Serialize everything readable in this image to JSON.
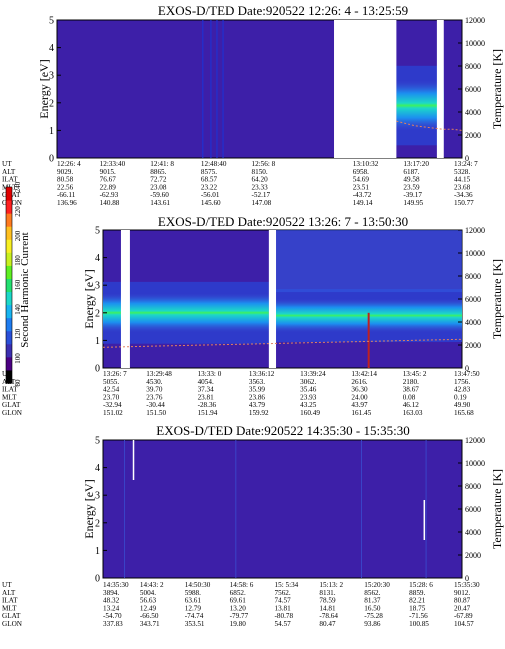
{
  "colors": {
    "background": "#3d1fa8",
    "gap": "#ffffff",
    "cbar": [
      "#000000",
      "#4b0082",
      "#3b2fb0",
      "#2a4fd8",
      "#1e7cf0",
      "#18b4f0",
      "#1cd8c8",
      "#22e070",
      "#5ef022",
      "#c8f020",
      "#f8f022",
      "#ffc020",
      "#ff7a20",
      "#ff2020",
      "#e00000"
    ]
  },
  "colorbar": {
    "label": "Second Harmonic Current",
    "ticks": [
      "80",
      "100",
      "120",
      "140",
      "160",
      "180",
      "200",
      "220",
      "240"
    ]
  },
  "chart_data": [
    {
      "type": "heatmap",
      "title": "EXOS-D/TED   Date:920522  12:26: 4 - 13:25:59",
      "ylabel": "Energy [eV]",
      "y2label": "Temperature [K]",
      "ylim": [
        0,
        5
      ],
      "y2lim": [
        0,
        12000
      ],
      "yticks": [
        "0",
        "1",
        "2",
        "3",
        "4",
        "5"
      ],
      "y2ticks": [
        "0",
        "2000",
        "4000",
        "6000",
        "8000",
        "10000",
        "12000"
      ],
      "gaps": [
        [
          0.684,
          0.838
        ],
        [
          0.938,
          0.955
        ]
      ],
      "band": [
        {
          "from": 0.838,
          "to": 0.955,
          "center": 1.9,
          "width": 0.9,
          "level": 1
        }
      ],
      "temperature": {
        "from": 0.838,
        "to": 1.0,
        "values_K": [
          3200,
          3000,
          2800,
          2700,
          2600,
          2500,
          2500,
          2400
        ]
      },
      "ephemeris": {
        "labels": [
          "UT",
          "ALT",
          "ILAT",
          "MLT",
          "GLAT",
          "GLON"
        ],
        "columns": [
          [
            "12:26: 4",
            "9029.",
            "80.58",
            "22.56",
            "-66.11",
            "136.96"
          ],
          [
            "12:33:40",
            "9015.",
            "76.67",
            "22.89",
            "-62.93",
            "140.88"
          ],
          [
            "12:41: 8",
            "8865.",
            "72.72",
            "23.08",
            "-59.60",
            "143.61"
          ],
          [
            "12:48:40",
            "8575.",
            "68.57",
            "23.22",
            "-56.01",
            "145.60"
          ],
          [
            "12:56: 8",
            "8150.",
            "64.20",
            "23.33",
            "-52.17",
            "147.08"
          ],
          [
            "",
            "",
            "",
            "",
            "",
            ""
          ],
          [
            "13:10:32",
            "6958.",
            "54.69",
            "23.51",
            "-43.72",
            "149.14"
          ],
          [
            "13:17:20",
            "6187.",
            "49.58",
            "23.59",
            "-39.17",
            "149.95"
          ],
          [
            "13:24: 7",
            "5328.",
            "44.15",
            "23.68",
            "-34.36",
            "150.77"
          ]
        ]
      }
    },
    {
      "type": "heatmap",
      "title": "EXOS-D/TED   Date:920522  13:26: 7 - 13:50:30",
      "ylabel": "Energy [eV]",
      "y2label": "Temperature [K]",
      "ylim": [
        0,
        5
      ],
      "y2lim": [
        0,
        12000
      ],
      "yticks": [
        "0",
        "1",
        "2",
        "3",
        "4",
        "5"
      ],
      "y2ticks": [
        "0",
        "2000",
        "4000",
        "6000",
        "8000",
        "10000",
        "12000"
      ],
      "gaps": [
        [
          0.05,
          0.075
        ],
        [
          0.462,
          0.482
        ]
      ],
      "band": [
        {
          "from": 0.0,
          "to": 0.462,
          "center": 2.0,
          "width": 0.7,
          "level": 1
        },
        {
          "from": 0.482,
          "to": 1.0,
          "center": 1.9,
          "width": 0.6,
          "level": 0.8
        }
      ],
      "temperature": {
        "from": 0.0,
        "to": 1.0,
        "values_K": [
          1800,
          1900,
          2000,
          2100,
          2200,
          2300,
          2400,
          2500
        ]
      },
      "ephemeris": {
        "labels": [
          "UT",
          "ALT",
          "ILAT",
          "MLT",
          "GLAT",
          "GLON"
        ],
        "columns": [
          [
            "13:26: 7",
            "5055.",
            "42.54",
            "23.70",
            "-32.94",
            "151.02"
          ],
          [
            "13:29:48",
            "4530.",
            "39.70",
            "23.76",
            "-30.44",
            "151.50"
          ],
          [
            "13:33: 0",
            "4054.",
            "37.34",
            "23.81",
            "-28.36",
            "151.94"
          ],
          [
            "13:36:12",
            "3563.",
            "35.99",
            "23.86",
            "43.79",
            "159.92"
          ],
          [
            "13:39:24",
            "3062.",
            "35.46",
            "23.93",
            "43.25",
            "160.49"
          ],
          [
            "13:42:14",
            "2616.",
            "36.30",
            "24.00",
            "43.97",
            "161.45"
          ],
          [
            "13:45: 2",
            "2180.",
            "38.67",
            "0.08",
            "46.12",
            "163.03"
          ],
          [
            "13:47:50",
            "1756.",
            "42.83",
            "0.19",
            "49.90",
            "165.68"
          ]
        ]
      }
    },
    {
      "type": "heatmap",
      "title": "EXOS-D/TED   Date:920522  14:35:30 - 15:35:30",
      "ylabel": "Energy [eV]",
      "y2label": "Temperature [K]",
      "ylim": [
        0,
        5
      ],
      "y2lim": [
        0,
        12000
      ],
      "yticks": [
        "0",
        "1",
        "2",
        "3",
        "4",
        "5"
      ],
      "y2ticks": [
        "0",
        "2000",
        "4000",
        "6000",
        "8000",
        "10000",
        "12000"
      ],
      "gaps": [],
      "band": [],
      "temperature": null,
      "ephemeris": {
        "labels": [
          "UT",
          "ALT",
          "ILAT",
          "MLT",
          "GLAT",
          "GLON"
        ],
        "columns": [
          [
            "14:35:30",
            "3894.",
            "48.32",
            "13.24",
            "-54.70",
            "337.83"
          ],
          [
            "14:43: 2",
            "5004.",
            "56.63",
            "12.49",
            "-66.50",
            "343.71"
          ],
          [
            "14:50:30",
            "5988.",
            "63.61",
            "12.79",
            "-74.74",
            "353.51"
          ],
          [
            "14:58: 6",
            "6852.",
            "69.61",
            "13.20",
            "-79.77",
            "19.80"
          ],
          [
            "15: 5:34",
            "7562.",
            "74.57",
            "13.81",
            "-80.78",
            "54.57"
          ],
          [
            "15:13: 2",
            "8131.",
            "78.59",
            "14.81",
            "-78.64",
            "80.47"
          ],
          [
            "15:20:30",
            "8562.",
            "81.37",
            "16.50",
            "-75.28",
            "93.86"
          ],
          [
            "15:28: 6",
            "8859.",
            "82.21",
            "18.75",
            "-71.56",
            "100.85"
          ],
          [
            "15:35:30",
            "9012.",
            "80.87",
            "20.47",
            "-67.89",
            "104.57"
          ]
        ]
      }
    }
  ]
}
